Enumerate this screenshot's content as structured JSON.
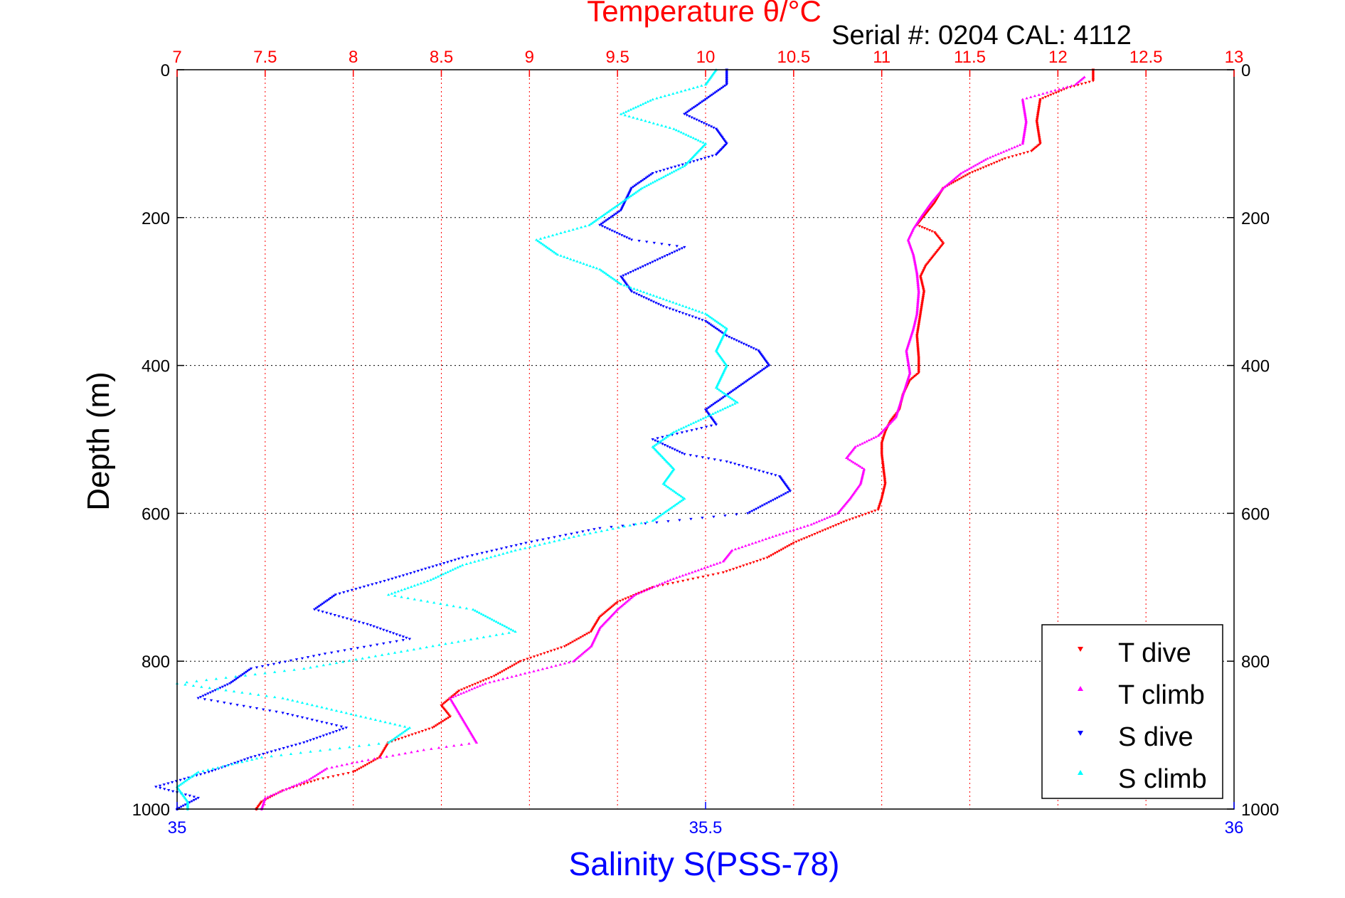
{
  "chart_data": {
    "type": "scatter",
    "title": "Temperature θ/°C",
    "subtitle": "Serial #: 0204  CAL: 4112",
    "ylabel": "Depth (m)",
    "xlabel_bottom": "Salinity S(PSS-78)",
    "grid": true,
    "legend_position": "bottom-right",
    "axes": {
      "temperature": {
        "position": "top",
        "range": [
          7,
          13
        ],
        "ticks": [
          "7",
          "7.5",
          "8",
          "8.5",
          "9",
          "9.5",
          "10",
          "10.5",
          "11",
          "11.5",
          "12",
          "12.5",
          "13"
        ],
        "color": "#ff0000"
      },
      "salinity": {
        "position": "bottom",
        "range": [
          35,
          36
        ],
        "ticks": [
          "35",
          "35.5",
          "36"
        ],
        "color": "#0000ff"
      },
      "depth": {
        "position": "left-and-right",
        "range": [
          0,
          1000
        ],
        "reversed": true,
        "ticks": [
          "0",
          "200",
          "400",
          "600",
          "800",
          "1000"
        ],
        "color": "#000000"
      }
    },
    "series": [
      {
        "name": "T dive",
        "axis": "temperature",
        "color": "#ff0000",
        "marker": "triangle-down",
        "points": [
          [
            12.2,
            0
          ],
          [
            12.2,
            15
          ],
          [
            12.05,
            25
          ],
          [
            11.9,
            40
          ],
          [
            11.88,
            70
          ],
          [
            11.9,
            100
          ],
          [
            11.85,
            110
          ],
          [
            11.7,
            120
          ],
          [
            11.5,
            140
          ],
          [
            11.35,
            160
          ],
          [
            11.3,
            180
          ],
          [
            11.25,
            195
          ],
          [
            11.2,
            210
          ],
          [
            11.3,
            220
          ],
          [
            11.35,
            235
          ],
          [
            11.3,
            250
          ],
          [
            11.25,
            265
          ],
          [
            11.22,
            280
          ],
          [
            11.24,
            300
          ],
          [
            11.22,
            330
          ],
          [
            11.2,
            360
          ],
          [
            11.21,
            390
          ],
          [
            11.21,
            410
          ],
          [
            11.16,
            420
          ],
          [
            11.12,
            440
          ],
          [
            11.1,
            460
          ],
          [
            11.05,
            475
          ],
          [
            11.02,
            490
          ],
          [
            11.0,
            505
          ],
          [
            11.0,
            520
          ],
          [
            11.01,
            540
          ],
          [
            11.02,
            560
          ],
          [
            11.0,
            580
          ],
          [
            10.98,
            595
          ],
          [
            10.8,
            610
          ],
          [
            10.5,
            640
          ],
          [
            10.35,
            660
          ],
          [
            10.1,
            680
          ],
          [
            9.9,
            690
          ],
          [
            9.7,
            700
          ],
          [
            9.5,
            720
          ],
          [
            9.4,
            740
          ],
          [
            9.35,
            760
          ],
          [
            9.2,
            780
          ],
          [
            8.95,
            800
          ],
          [
            8.8,
            820
          ],
          [
            8.6,
            840
          ],
          [
            8.5,
            860
          ],
          [
            8.55,
            875
          ],
          [
            8.45,
            890
          ],
          [
            8.2,
            910
          ],
          [
            8.15,
            930
          ],
          [
            8.0,
            950
          ],
          [
            7.8,
            960
          ],
          [
            7.6,
            975
          ],
          [
            7.48,
            990
          ],
          [
            7.45,
            1000
          ]
        ]
      },
      {
        "name": "T climb",
        "axis": "temperature",
        "color": "#ff00ff",
        "marker": "triangle-up",
        "points": [
          [
            12.15,
            10
          ],
          [
            12.1,
            20
          ],
          [
            11.8,
            40
          ],
          [
            11.82,
            70
          ],
          [
            11.8,
            100
          ],
          [
            11.6,
            120
          ],
          [
            11.45,
            140
          ],
          [
            11.35,
            160
          ],
          [
            11.28,
            180
          ],
          [
            11.22,
            200
          ],
          [
            11.18,
            215
          ],
          [
            11.15,
            230
          ],
          [
            11.18,
            250
          ],
          [
            11.2,
            275
          ],
          [
            11.21,
            300
          ],
          [
            11.2,
            330
          ],
          [
            11.18,
            350
          ],
          [
            11.14,
            380
          ],
          [
            11.16,
            410
          ],
          [
            11.12,
            440
          ],
          [
            11.08,
            470
          ],
          [
            10.98,
            495
          ],
          [
            10.85,
            510
          ],
          [
            10.8,
            525
          ],
          [
            10.9,
            540
          ],
          [
            10.88,
            560
          ],
          [
            10.82,
            580
          ],
          [
            10.75,
            600
          ],
          [
            10.6,
            615
          ],
          [
            10.4,
            630
          ],
          [
            10.15,
            650
          ],
          [
            10.1,
            665
          ],
          [
            9.8,
            690
          ],
          [
            9.6,
            710
          ],
          [
            9.5,
            730
          ],
          [
            9.4,
            755
          ],
          [
            9.35,
            780
          ],
          [
            9.25,
            800
          ],
          [
            9.0,
            815
          ],
          [
            8.75,
            830
          ],
          [
            8.55,
            850
          ],
          [
            8.6,
            870
          ],
          [
            8.65,
            890
          ],
          [
            8.7,
            910
          ],
          [
            8.4,
            920
          ],
          [
            8.05,
            935
          ],
          [
            7.85,
            945
          ],
          [
            7.75,
            960
          ],
          [
            7.65,
            970
          ],
          [
            7.5,
            985
          ],
          [
            7.48,
            1000
          ]
        ]
      },
      {
        "name": "S dive",
        "axis": "salinity",
        "color": "#0000ff",
        "marker": "triangle-down",
        "points": [
          [
            35.52,
            0
          ],
          [
            35.52,
            20
          ],
          [
            35.5,
            40
          ],
          [
            35.48,
            60
          ],
          [
            35.51,
            80
          ],
          [
            35.52,
            100
          ],
          [
            35.51,
            115
          ],
          [
            35.45,
            140
          ],
          [
            35.43,
            160
          ],
          [
            35.42,
            190
          ],
          [
            35.4,
            210
          ],
          [
            35.43,
            230
          ],
          [
            35.48,
            240
          ],
          [
            35.45,
            260
          ],
          [
            35.42,
            280
          ],
          [
            35.43,
            300
          ],
          [
            35.46,
            320
          ],
          [
            35.5,
            340
          ],
          [
            35.52,
            360
          ],
          [
            35.55,
            380
          ],
          [
            35.56,
            400
          ],
          [
            35.54,
            420
          ],
          [
            35.52,
            440
          ],
          [
            35.5,
            460
          ],
          [
            35.51,
            480
          ],
          [
            35.45,
            500
          ],
          [
            35.48,
            520
          ],
          [
            35.52,
            530
          ],
          [
            35.57,
            550
          ],
          [
            35.58,
            570
          ],
          [
            35.54,
            600
          ],
          [
            35.4,
            620
          ],
          [
            35.33,
            640
          ],
          [
            35.27,
            660
          ],
          [
            35.2,
            690
          ],
          [
            35.15,
            710
          ],
          [
            35.13,
            730
          ],
          [
            35.18,
            750
          ],
          [
            35.22,
            770
          ],
          [
            35.14,
            790
          ],
          [
            35.07,
            810
          ],
          [
            35.05,
            830
          ],
          [
            35.02,
            850
          ],
          [
            35.1,
            870
          ],
          [
            35.16,
            890
          ],
          [
            35.12,
            910
          ],
          [
            35.07,
            930
          ],
          [
            35.03,
            950
          ],
          [
            34.98,
            970
          ],
          [
            35.02,
            985
          ],
          [
            35.0,
            1000
          ]
        ]
      },
      {
        "name": "S climb",
        "axis": "salinity",
        "color": "#00ffff",
        "marker": "triangle-up",
        "points": [
          [
            35.51,
            0
          ],
          [
            35.5,
            20
          ],
          [
            35.45,
            40
          ],
          [
            35.42,
            60
          ],
          [
            35.47,
            80
          ],
          [
            35.5,
            100
          ],
          [
            35.48,
            130
          ],
          [
            35.44,
            160
          ],
          [
            35.42,
            180
          ],
          [
            35.39,
            210
          ],
          [
            35.34,
            230
          ],
          [
            35.36,
            250
          ],
          [
            35.4,
            270
          ],
          [
            35.42,
            290
          ],
          [
            35.46,
            310
          ],
          [
            35.5,
            330
          ],
          [
            35.52,
            350
          ],
          [
            35.51,
            380
          ],
          [
            35.52,
            400
          ],
          [
            35.51,
            430
          ],
          [
            35.53,
            450
          ],
          [
            35.5,
            470
          ],
          [
            35.47,
            490
          ],
          [
            35.45,
            510
          ],
          [
            35.47,
            540
          ],
          [
            35.46,
            560
          ],
          [
            35.48,
            580
          ],
          [
            35.45,
            610
          ],
          [
            35.38,
            630
          ],
          [
            35.32,
            650
          ],
          [
            35.27,
            670
          ],
          [
            35.24,
            690
          ],
          [
            35.2,
            710
          ],
          [
            35.28,
            730
          ],
          [
            35.32,
            760
          ],
          [
            35.2,
            790
          ],
          [
            35.12,
            810
          ],
          [
            35.0,
            830
          ],
          [
            35.1,
            850
          ],
          [
            35.16,
            870
          ],
          [
            35.22,
            890
          ],
          [
            35.2,
            910
          ],
          [
            35.08,
            930
          ],
          [
            35.02,
            950
          ],
          [
            35.0,
            970
          ],
          [
            35.01,
            990
          ],
          [
            35.01,
            1000
          ]
        ]
      }
    ]
  }
}
